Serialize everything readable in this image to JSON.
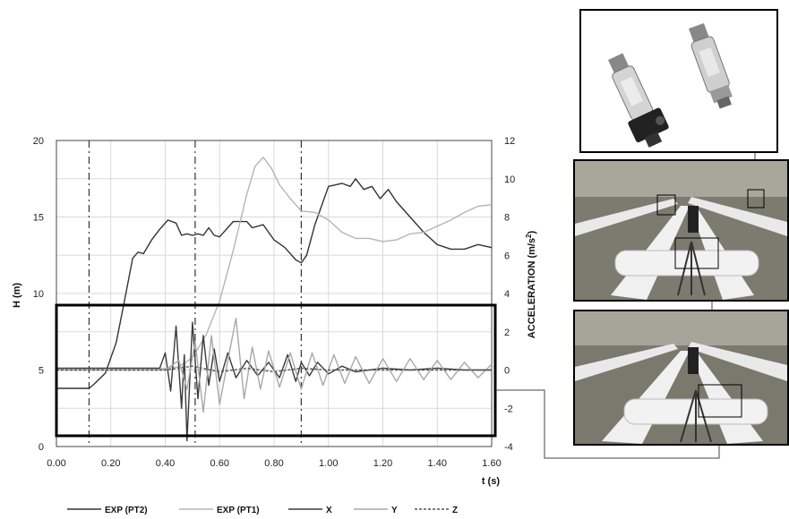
{
  "chart_data": {
    "type": "line",
    "xlabel": "t (s)",
    "ylabel_left": "H (m)",
    "ylabel_right": "ACCELERATION (m/s",
    "ylabel_right_sup": "2",
    "ylabel_right_tail": ")",
    "xlim": [
      0,
      1.6
    ],
    "ylim_left": [
      0,
      20
    ],
    "ylim_right": [
      -4,
      12
    ],
    "x_ticks": [
      "0.00",
      "0.20",
      "0.40",
      "0.60",
      "0.80",
      "1.00",
      "1.20",
      "1.40",
      "1.60"
    ],
    "y_left_ticks": [
      "0",
      "5",
      "10",
      "15",
      "20"
    ],
    "y_right_ticks": [
      "-4",
      "-2",
      "0",
      "2",
      "4",
      "6",
      "8",
      "10",
      "12"
    ],
    "grid": true,
    "legend_position": "bottom",
    "vertical_markers": [
      0.12,
      0.51,
      0.9
    ],
    "series": [
      {
        "name": "EXP (PT2)",
        "color": "#333333",
        "axis": "left",
        "style": "solid",
        "x": [
          0,
          0.12,
          0.14,
          0.18,
          0.22,
          0.25,
          0.28,
          0.3,
          0.32,
          0.35,
          0.38,
          0.41,
          0.44,
          0.46,
          0.48,
          0.5,
          0.52,
          0.54,
          0.56,
          0.58,
          0.6,
          0.65,
          0.7,
          0.72,
          0.76,
          0.8,
          0.84,
          0.88,
          0.9,
          0.92,
          0.95,
          1.0,
          1.05,
          1.08,
          1.1,
          1.13,
          1.16,
          1.19,
          1.22,
          1.25,
          1.3,
          1.35,
          1.4,
          1.45,
          1.5,
          1.55,
          1.6
        ],
        "y": [
          3.8,
          3.8,
          4.1,
          4.8,
          6.8,
          9.5,
          12.3,
          12.7,
          12.6,
          13.5,
          14.2,
          14.8,
          14.6,
          13.8,
          13.9,
          13.8,
          13.9,
          13.8,
          14.3,
          13.8,
          13.7,
          14.7,
          14.7,
          14.3,
          14.5,
          13.5,
          13.0,
          12.2,
          12.0,
          12.5,
          14.5,
          17.0,
          17.2,
          17.0,
          17.5,
          16.8,
          17.0,
          16.2,
          16.8,
          16.0,
          15.0,
          14.0,
          13.2,
          12.9,
          12.9,
          13.2,
          13.0
        ]
      },
      {
        "name": "EXP (PT1)",
        "color": "#b5b5b5",
        "axis": "left",
        "style": "solid",
        "x": [
          0,
          0.4,
          0.45,
          0.5,
          0.55,
          0.6,
          0.65,
          0.7,
          0.73,
          0.76,
          0.79,
          0.82,
          0.86,
          0.9,
          0.95,
          1.0,
          1.05,
          1.1,
          1.15,
          1.2,
          1.25,
          1.3,
          1.35,
          1.4,
          1.45,
          1.5,
          1.55,
          1.6
        ],
        "y": [
          5.1,
          5.1,
          5.2,
          5.8,
          7.3,
          9.5,
          12.8,
          16.5,
          18.3,
          18.9,
          18.2,
          17.1,
          16.2,
          15.4,
          15.3,
          14.8,
          14.0,
          13.6,
          13.6,
          13.4,
          13.5,
          13.9,
          14.0,
          14.4,
          14.8,
          15.3,
          15.7,
          15.8
        ]
      },
      {
        "name": "X",
        "color": "#3a3a3a",
        "axis": "right",
        "style": "solid",
        "x": [
          0,
          0.38,
          0.4,
          0.42,
          0.44,
          0.46,
          0.47,
          0.48,
          0.5,
          0.52,
          0.54,
          0.56,
          0.58,
          0.6,
          0.63,
          0.66,
          0.7,
          0.74,
          0.78,
          0.82,
          0.85,
          0.88,
          0.9,
          0.93,
          0.96,
          1.0,
          1.05,
          1.1,
          1.2,
          1.3,
          1.4,
          1.5,
          1.6
        ],
        "y": [
          0.1,
          0.1,
          0.9,
          -1.1,
          2.3,
          -2.0,
          0.8,
          -3.7,
          2.5,
          -1.5,
          1.8,
          -0.8,
          1.1,
          -0.6,
          0.9,
          -0.4,
          0.5,
          -0.3,
          0.4,
          -0.4,
          0.8,
          -0.6,
          0.4,
          -0.3,
          0.4,
          -0.2,
          0.2,
          -0.1,
          0.1,
          0.0,
          0.1,
          0.0,
          0.0
        ]
      },
      {
        "name": "Y",
        "color": "#a8a8a8",
        "axis": "right",
        "style": "solid",
        "x": [
          0,
          0.4,
          0.45,
          0.48,
          0.51,
          0.54,
          0.57,
          0.6,
          0.63,
          0.66,
          0.69,
          0.72,
          0.75,
          0.78,
          0.82,
          0.86,
          0.9,
          0.94,
          0.98,
          1.02,
          1.06,
          1.1,
          1.15,
          1.2,
          1.25,
          1.3,
          1.35,
          1.4,
          1.45,
          1.5,
          1.55,
          1.6
        ],
        "y": [
          0,
          0,
          0.5,
          -1.0,
          1.5,
          -2.2,
          1.8,
          -1.8,
          0.5,
          2.7,
          -1.5,
          1.2,
          -1.0,
          1.0,
          -0.9,
          0.9,
          -1.0,
          0.9,
          -0.8,
          0.8,
          -0.7,
          0.7,
          -0.7,
          0.6,
          -0.6,
          0.6,
          -0.5,
          0.5,
          -0.5,
          0.4,
          -0.4,
          0.3
        ]
      },
      {
        "name": "Z",
        "color": "#555555",
        "axis": "right",
        "style": "dashed",
        "x": [
          0,
          0.4,
          0.5,
          0.6,
          0.7,
          0.8,
          0.9,
          1.0,
          1.2,
          1.4,
          1.6
        ],
        "y": [
          0.0,
          0.0,
          0.2,
          -0.1,
          0.1,
          -0.1,
          0.1,
          0.0,
          0.0,
          0.0,
          0.0
        ]
      }
    ]
  }
}
